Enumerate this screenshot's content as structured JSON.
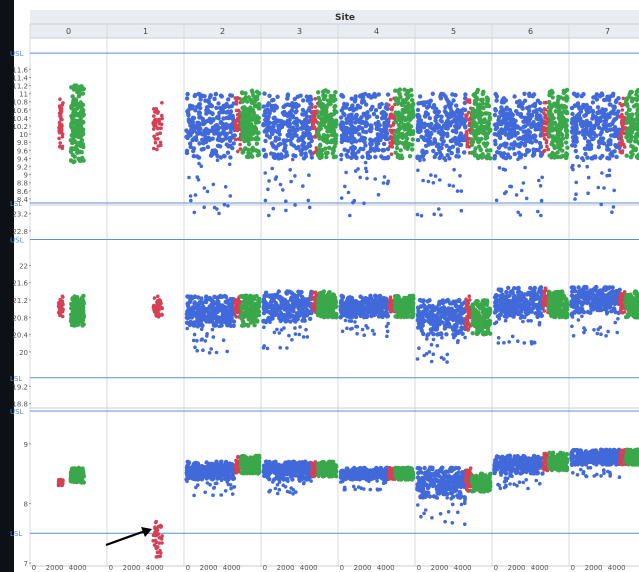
{
  "chart_data": {
    "type": "scatter",
    "title": "",
    "column_group_label": "Site",
    "sites": [
      "0",
      "1",
      "2",
      "3",
      "4",
      "5",
      "6",
      "7"
    ],
    "x_ticks": [
      "0",
      "2000",
      "4000"
    ],
    "xlim": [
      0,
      5200
    ],
    "series_colors": {
      "blue": "#4169d9",
      "red": "#d64055",
      "green": "#3aa84a"
    },
    "limit_line_color": "#5b8fd6",
    "panels": [
      {
        "name": "panel-1",
        "ylim": [
          8.25,
          12.2
        ],
        "y_ticks": [
          "11.6",
          "11.4",
          "11.2",
          "11",
          "10.8",
          "10.6",
          "10.4",
          "10.2",
          "10",
          "9.8",
          "9.6",
          "9.4",
          "9.2",
          "9",
          "8.8",
          "8.6",
          "8.4"
        ],
        "limit_lines": [
          {
            "label": "USL",
            "value": 12.0
          },
          {
            "label": "LSL",
            "value": 8.3
          }
        ],
        "sites": [
          {
            "blue": null,
            "red": [
              0.37,
              0.43,
              9.6,
              10.9
            ],
            "green": [
              0.53,
              0.7,
              9.3,
              11.2
            ]
          },
          {
            "blue": null,
            "red": [
              0.6,
              0.72,
              9.6,
              10.8
            ],
            "green": null
          },
          {
            "blue": [
              0.03,
              0.66,
              9.4,
              11.0
            ],
            "red": [
              0.66,
              0.74,
              9.5,
              10.9
            ],
            "green": [
              0.74,
              0.98,
              9.4,
              11.1
            ]
          },
          {
            "blue": [
              0.03,
              0.66,
              9.4,
              11.0
            ],
            "red": [
              0.66,
              0.74,
              9.5,
              10.9
            ],
            "green": [
              0.74,
              0.98,
              9.4,
              11.1
            ]
          },
          {
            "blue": [
              0.03,
              0.66,
              9.4,
              11.0
            ],
            "red": [
              0.66,
              0.74,
              9.5,
              10.9
            ],
            "green": [
              0.74,
              0.98,
              9.4,
              11.1
            ]
          },
          {
            "blue": [
              0.03,
              0.66,
              9.4,
              11.0
            ],
            "red": [
              0.66,
              0.74,
              9.5,
              10.9
            ],
            "green": [
              0.74,
              0.98,
              9.4,
              11.1
            ]
          },
          {
            "blue": [
              0.03,
              0.66,
              9.4,
              11.0
            ],
            "red": [
              0.66,
              0.74,
              9.5,
              10.9
            ],
            "green": [
              0.74,
              0.98,
              9.4,
              11.1
            ]
          },
          {
            "blue": [
              0.03,
              0.66,
              9.4,
              11.0
            ],
            "red": [
              0.66,
              0.74,
              9.5,
              10.9
            ],
            "green": [
              0.74,
              0.98,
              9.4,
              11.1
            ]
          }
        ]
      },
      {
        "name": "panel-2",
        "ylim": [
          18.7,
          23.4
        ],
        "y_ticks": [
          "23.2",
          "22.8",
          "22",
          "21.6",
          "21.2",
          "20.8",
          "20.4",
          "20",
          "19.2",
          "18.8"
        ],
        "limit_lines": [
          {
            "label": "LSL",
            "value": 19.4
          },
          {
            "label": "USL",
            "value": 22.6
          }
        ],
        "sites": [
          {
            "blue": null,
            "red": [
              0.37,
              0.43,
              20.8,
              21.3
            ],
            "green": [
              0.53,
              0.7,
              20.6,
              21.3
            ]
          },
          {
            "blue": null,
            "red": [
              0.6,
              0.72,
              20.8,
              21.3
            ],
            "green": null
          },
          {
            "blue": [
              0.03,
              0.66,
              20.6,
              21.3
            ],
            "red": [
              0.66,
              0.74,
              20.8,
              21.3
            ],
            "green": [
              0.74,
              0.98,
              20.6,
              21.3
            ]
          },
          {
            "blue": [
              0.03,
              0.66,
              20.7,
              21.4
            ],
            "red": [
              0.66,
              0.74,
              20.9,
              21.4
            ],
            "green": [
              0.74,
              0.98,
              20.8,
              21.4
            ]
          },
          {
            "blue": [
              0.03,
              0.66,
              20.8,
              21.3
            ],
            "red": [
              0.66,
              0.74,
              20.9,
              21.3
            ],
            "green": [
              0.74,
              0.98,
              20.8,
              21.3
            ]
          },
          {
            "blue": [
              0.03,
              0.66,
              20.4,
              21.2
            ],
            "red": [
              0.66,
              0.74,
              20.5,
              21.3
            ],
            "green": [
              0.74,
              0.98,
              20.4,
              21.2
            ]
          },
          {
            "blue": [
              0.03,
              0.66,
              20.8,
              21.5
            ],
            "red": [
              0.66,
              0.74,
              20.9,
              21.5
            ],
            "green": [
              0.74,
              0.98,
              20.8,
              21.4
            ]
          },
          {
            "blue": [
              0.03,
              0.66,
              20.9,
              21.5
            ],
            "red": [
              0.66,
              0.74,
              20.9,
              21.4
            ],
            "green": [
              0.74,
              0.98,
              20.8,
              21.4
            ]
          }
        ]
      },
      {
        "name": "panel-3",
        "ylim": [
          6.95,
          9.6
        ],
        "y_ticks": [
          "9",
          "8",
          "7"
        ],
        "limit_lines": [
          {
            "label": "USL",
            "value": 9.55
          },
          {
            "label": "LSL",
            "value": 7.5
          }
        ],
        "sites": [
          {
            "blue": null,
            "red": [
              0.37,
              0.43,
              8.3,
              8.4
            ],
            "green": [
              0.53,
              0.7,
              8.35,
              8.6
            ]
          },
          {
            "blue": null,
            "red": [
              0.6,
              0.72,
              7.1,
              7.7
            ],
            "green": null
          },
          {
            "blue": [
              0.03,
              0.66,
              8.4,
              8.7
            ],
            "red": [
              0.66,
              0.74,
              8.5,
              8.8
            ],
            "green": [
              0.74,
              0.98,
              8.5,
              8.8
            ]
          },
          {
            "blue": [
              0.03,
              0.66,
              8.4,
              8.7
            ],
            "red": [
              0.66,
              0.74,
              8.45,
              8.7
            ],
            "green": [
              0.74,
              0.98,
              8.45,
              8.7
            ]
          },
          {
            "blue": [
              0.03,
              0.66,
              8.4,
              8.6
            ],
            "red": [
              0.66,
              0.74,
              8.4,
              8.6
            ],
            "green": [
              0.74,
              0.98,
              8.4,
              8.6
            ]
          },
          {
            "blue": [
              0.03,
              0.66,
              8.1,
              8.6
            ],
            "red": [
              0.66,
              0.74,
              8.2,
              8.6
            ],
            "green": [
              0.74,
              0.98,
              8.2,
              8.5
            ]
          },
          {
            "blue": [
              0.03,
              0.66,
              8.5,
              8.8
            ],
            "red": [
              0.66,
              0.74,
              8.55,
              8.85
            ],
            "green": [
              0.74,
              0.98,
              8.55,
              8.85
            ]
          },
          {
            "blue": [
              0.03,
              0.66,
              8.65,
              8.9
            ],
            "red": [
              0.66,
              0.74,
              8.65,
              8.9
            ],
            "green": [
              0.74,
              0.98,
              8.65,
              8.9
            ]
          }
        ]
      }
    ]
  }
}
